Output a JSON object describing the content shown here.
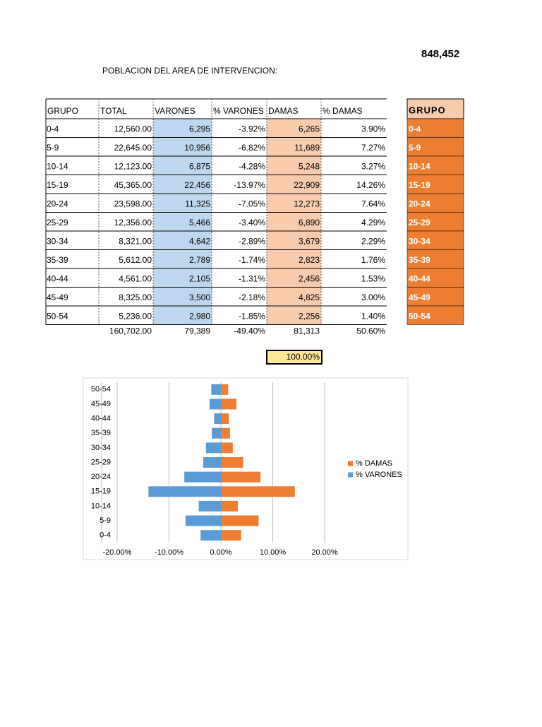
{
  "header": {
    "title": "POBLACION DEL AREA DE INTERVENCION:",
    "total": "848,452"
  },
  "table": {
    "columns": [
      "GRUPO",
      "TOTAL",
      "VARONES",
      "% VARONES",
      "DAMAS",
      "% DAMAS"
    ],
    "rows": [
      [
        "0-4",
        "12,560.00",
        "6,295",
        "-3.92%",
        "6,265",
        "3.90%"
      ],
      [
        "5-9",
        "22,645.00",
        "10,956",
        "-6.82%",
        "11,689",
        "7.27%"
      ],
      [
        "10-14",
        "12,123.00",
        "6,875",
        "-4.28%",
        "5,248",
        "3.27%"
      ],
      [
        "15-19",
        "45,365.00",
        "22,456",
        "-13.97%",
        "22,909",
        "14.26%"
      ],
      [
        "20-24",
        "23,598.00",
        "11,325",
        "-7.05%",
        "12,273",
        "7.64%"
      ],
      [
        "25-29",
        "12,356.00",
        "5,466",
        "-3.40%",
        "6,890",
        "4.29%"
      ],
      [
        "30-34",
        "8,321.00",
        "4,642",
        "-2.89%",
        "3,679",
        "2.29%"
      ],
      [
        "35-39",
        "5,612.00",
        "2,789",
        "-1.74%",
        "2,823",
        "1.76%"
      ],
      [
        "40-44",
        "4,561.00",
        "2,105",
        "-1.31%",
        "2,456",
        "1.53%"
      ],
      [
        "45-49",
        "8,325.00",
        "3,500",
        "-2.18%",
        "4,825",
        "3.00%"
      ],
      [
        "50-54",
        "5,236.00",
        "2,980",
        "-1.85%",
        "2,256",
        "1.40%"
      ]
    ],
    "totals": [
      "160,702.00",
      "79,389",
      "-49.40%",
      "81,313",
      "50.60%"
    ],
    "check": "100.00%"
  },
  "side": {
    "header": "GRUPO",
    "labels": [
      "0-4",
      "5-9",
      "10-14",
      "15-19",
      "20-24",
      "25-29",
      "30-34",
      "35-39",
      "40-44",
      "45-49",
      "50-54"
    ]
  },
  "chart_data": {
    "type": "bar",
    "orientation": "horizontal",
    "categories": [
      "0-4",
      "5-9",
      "10-14",
      "15-19",
      "20-24",
      "25-29",
      "30-34",
      "35-39",
      "40-44",
      "45-49",
      "50-54"
    ],
    "series": [
      {
        "name": "% DAMAS",
        "color": "#ed7d31",
        "values": [
          3.9,
          7.27,
          3.27,
          14.26,
          7.64,
          4.29,
          2.29,
          1.76,
          1.53,
          3.0,
          1.4
        ]
      },
      {
        "name": "% VARONES",
        "color": "#5b9bd5",
        "values": [
          -3.92,
          -6.82,
          -4.28,
          -13.97,
          -7.05,
          -3.4,
          -2.89,
          -1.74,
          -1.31,
          -2.18,
          -1.85
        ]
      }
    ],
    "xlim": [
      -20,
      20
    ],
    "xticks": [
      {
        "value": -20,
        "label": "-20.00%"
      },
      {
        "value": -10,
        "label": "-10.00%"
      },
      {
        "value": 0,
        "label": "0.00%"
      },
      {
        "value": 10,
        "label": "10.00%"
      },
      {
        "value": 20,
        "label": "20.00%"
      }
    ],
    "grid": true,
    "legend": "right"
  }
}
